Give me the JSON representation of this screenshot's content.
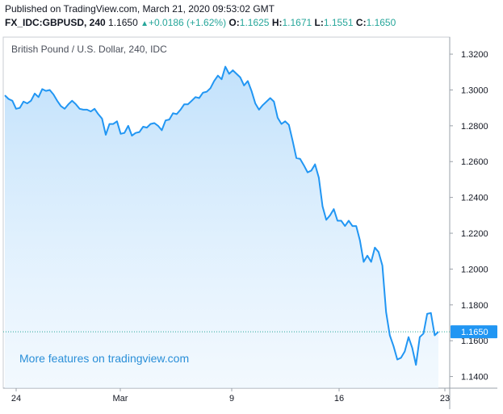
{
  "header": {
    "published": "Published on TradingView.com, March 21, 2020 09:53:02 GMT",
    "symbol": "FX_IDC:GBPUSD, 240",
    "price": "1.1650",
    "change": "+0.0186 (+1.62%)",
    "open_label": "O:",
    "open": "1.1625",
    "high_label": "H:",
    "high": "1.1671",
    "low_label": "L:",
    "low": "1.1551",
    "close_label": "C:",
    "close": "1.1650"
  },
  "watermark": "More features on tradingview.com",
  "colors": {
    "line": "#2196f3",
    "fill": "#bfe0fb",
    "up": "#26a69a",
    "last_label_bg": "#2196f3",
    "last_line": "#26a69a"
  },
  "chart_data": {
    "type": "area",
    "title": "British Pound / U.S. Dollar, 240, IDC",
    "xlabel": "",
    "ylabel": "",
    "x_ticks": [
      "24",
      "Mar",
      "9",
      "16",
      "23"
    ],
    "y_ticks": [
      "1.3200",
      "1.3000",
      "1.2800",
      "1.2600",
      "1.2400",
      "1.2200",
      "1.2000",
      "1.1800",
      "1.1600",
      "1.1400"
    ],
    "ylim": [
      1.1335,
      1.3295
    ],
    "last_value": "1.1650",
    "grid": false,
    "series": [
      {
        "values": [
          1.297,
          1.295,
          1.294,
          1.2895,
          1.29,
          1.2935,
          1.2925,
          1.294,
          1.298,
          1.296,
          1.3005,
          1.2995,
          1.3,
          1.2975,
          1.294,
          1.291,
          1.2895,
          1.292,
          1.294,
          1.292,
          1.2895,
          1.289,
          1.289,
          1.288,
          1.2895,
          1.2865,
          1.284,
          1.275,
          1.281,
          1.281,
          1.2825,
          1.2755,
          1.276,
          1.28,
          1.2745,
          1.276,
          1.2765,
          1.2795,
          1.279,
          1.281,
          1.2815,
          1.28,
          1.2775,
          1.283,
          1.2835,
          1.287,
          1.2865,
          1.289,
          1.292,
          1.292,
          1.294,
          1.296,
          1.2955,
          1.2985,
          1.299,
          1.301,
          1.305,
          1.308,
          1.306,
          1.313,
          1.309,
          1.311,
          1.309,
          1.307,
          1.3025,
          1.305,
          1.2995,
          1.2925,
          1.289,
          1.2915,
          1.2935,
          1.2955,
          1.2935,
          1.2845,
          1.281,
          1.2825,
          1.2805,
          1.2715,
          1.262,
          1.2615,
          1.258,
          1.254,
          1.255,
          1.2585,
          1.251,
          1.235,
          1.2275,
          1.23,
          1.2335,
          1.227,
          1.227,
          1.224,
          1.227,
          1.224,
          1.224,
          1.216,
          1.204,
          1.2075,
          1.204,
          1.212,
          1.2095,
          1.202,
          1.176,
          1.163,
          1.157,
          1.1495,
          1.1505,
          1.154,
          1.162,
          1.156,
          1.1465,
          1.162,
          1.164,
          1.175,
          1.1755,
          1.163,
          1.165
        ]
      }
    ]
  }
}
